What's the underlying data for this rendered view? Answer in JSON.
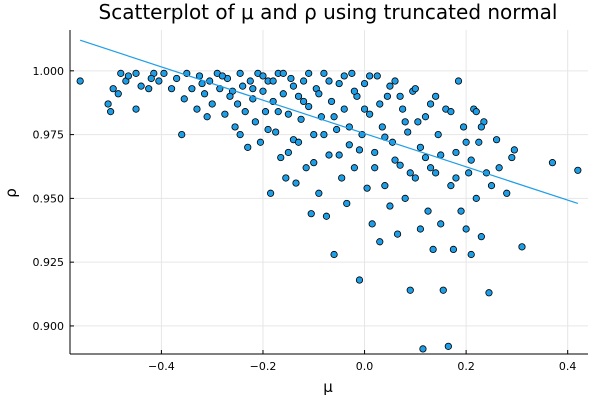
{
  "chart_data": {
    "type": "scatter",
    "title": "Scatterplot of μ and ρ using truncated normal",
    "xlabel": "μ",
    "ylabel": "ρ",
    "xlim": [
      -0.58,
      0.44
    ],
    "ylim": [
      0.889,
      1.016
    ],
    "xticks": [
      -0.4,
      -0.2,
      0.0,
      0.2,
      0.4
    ],
    "xtick_labels": [
      "−0.4",
      "−0.2",
      "0.0",
      "0.2",
      "0.4"
    ],
    "yticks": [
      0.9,
      0.925,
      0.95,
      0.975,
      1.0
    ],
    "ytick_labels": [
      "0.900",
      "0.925",
      "0.950",
      "0.975",
      "1.000"
    ],
    "grid": true,
    "legend": "none",
    "point_color": "#1f9ee8",
    "point_stroke": "#000000",
    "line_color": "#1f9ee8",
    "fit_line": {
      "x": [
        -0.56,
        0.42
      ],
      "y": [
        1.012,
        0.948
      ]
    },
    "series": [
      {
        "points": [
          [
            -0.56,
            0.996
          ],
          [
            -0.505,
            0.987
          ],
          [
            -0.5,
            0.984
          ],
          [
            -0.485,
            0.991
          ],
          [
            -0.48,
            0.999
          ],
          [
            -0.47,
            0.996
          ],
          [
            -0.465,
            0.998
          ],
          [
            -0.45,
            0.999
          ],
          [
            -0.44,
            0.994
          ],
          [
            -0.425,
            0.993
          ],
          [
            -0.415,
            0.999
          ],
          [
            -0.405,
            0.996
          ],
          [
            -0.395,
            0.999
          ],
          [
            -0.38,
            0.993
          ],
          [
            -0.37,
            0.997
          ],
          [
            -0.36,
            0.975
          ],
          [
            -0.355,
            0.989
          ],
          [
            -0.35,
            0.999
          ],
          [
            -0.34,
            0.993
          ],
          [
            -0.33,
            0.985
          ],
          [
            -0.325,
            0.998
          ],
          [
            -0.315,
            0.991
          ],
          [
            -0.305,
            0.996
          ],
          [
            -0.3,
            0.987
          ],
          [
            -0.29,
            0.999
          ],
          [
            -0.285,
            0.993
          ],
          [
            -0.275,
            0.983
          ],
          [
            -0.27,
            0.997
          ],
          [
            -0.26,
            0.992
          ],
          [
            -0.255,
            0.978
          ],
          [
            -0.25,
            0.987
          ],
          [
            -0.245,
            0.999
          ],
          [
            -0.24,
            0.994
          ],
          [
            -0.235,
            0.984
          ],
          [
            -0.23,
            0.97
          ],
          [
            -0.225,
            0.996
          ],
          [
            -0.22,
            0.989
          ],
          [
            -0.215,
            0.98
          ],
          [
            -0.21,
            0.999
          ],
          [
            -0.205,
            0.972
          ],
          [
            -0.2,
            0.992
          ],
          [
            -0.195,
            0.984
          ],
          [
            -0.19,
            0.996
          ],
          [
            -0.185,
            0.952
          ],
          [
            -0.18,
            0.988
          ],
          [
            -0.175,
            0.976
          ],
          [
            -0.17,
            0.999
          ],
          [
            -0.165,
            0.966
          ],
          [
            -0.16,
            0.991
          ],
          [
            -0.155,
            0.958
          ],
          [
            -0.15,
            0.983
          ],
          [
            -0.145,
            0.997
          ],
          [
            -0.14,
            0.973
          ],
          [
            -0.135,
            0.956
          ],
          [
            -0.13,
            0.99
          ],
          [
            -0.125,
            0.981
          ],
          [
            -0.12,
            0.996
          ],
          [
            -0.115,
            0.962
          ],
          [
            -0.11,
            0.986
          ],
          [
            -0.105,
            0.944
          ],
          [
            -0.1,
            0.975
          ],
          [
            -0.095,
            0.993
          ],
          [
            -0.09,
            0.952
          ],
          [
            -0.085,
            0.982
          ],
          [
            -0.08,
            0.999
          ],
          [
            -0.075,
            0.943
          ],
          [
            -0.07,
            0.967
          ],
          [
            -0.065,
            0.988
          ],
          [
            -0.06,
            0.928
          ],
          [
            -0.055,
            0.977
          ],
          [
            -0.05,
            0.995
          ],
          [
            -0.045,
            0.958
          ],
          [
            -0.04,
            0.985
          ],
          [
            -0.035,
            0.948
          ],
          [
            -0.03,
            0.971
          ],
          [
            -0.025,
            0.999
          ],
          [
            -0.02,
            0.962
          ],
          [
            -0.015,
            0.99
          ],
          [
            -0.01,
            0.918
          ],
          [
            -0.005,
            0.975
          ],
          [
            0.0,
            0.995
          ],
          [
            0.005,
            0.954
          ],
          [
            0.01,
            0.983
          ],
          [
            0.015,
            0.94
          ],
          [
            0.02,
            0.968
          ],
          [
            0.025,
            0.998
          ],
          [
            0.03,
            0.933
          ],
          [
            0.035,
            0.978
          ],
          [
            0.04,
            0.955
          ],
          [
            0.045,
            0.99
          ],
          [
            0.05,
            0.947
          ],
          [
            0.055,
            0.972
          ],
          [
            0.06,
            0.996
          ],
          [
            0.065,
            0.936
          ],
          [
            0.07,
            0.963
          ],
          [
            0.075,
            0.985
          ],
          [
            0.08,
            0.95
          ],
          [
            0.085,
            0.976
          ],
          [
            0.09,
            0.914
          ],
          [
            0.095,
            0.992
          ],
          [
            0.1,
            0.958
          ],
          [
            0.105,
            0.98
          ],
          [
            0.11,
            0.938
          ],
          [
            0.115,
            0.891
          ],
          [
            0.12,
            0.966
          ],
          [
            0.125,
            0.945
          ],
          [
            0.13,
            0.987
          ],
          [
            0.135,
            0.93
          ],
          [
            0.14,
            0.96
          ],
          [
            0.145,
            0.975
          ],
          [
            0.15,
            0.94
          ],
          [
            0.155,
            0.914
          ],
          [
            0.16,
            0.985
          ],
          [
            0.165,
            0.892
          ],
          [
            0.17,
            0.955
          ],
          [
            0.175,
            0.93
          ],
          [
            0.18,
            0.968
          ],
          [
            0.185,
            0.996
          ],
          [
            0.19,
            0.945
          ],
          [
            0.195,
            0.978
          ],
          [
            0.2,
            0.938
          ],
          [
            0.205,
            0.96
          ],
          [
            0.21,
            0.928
          ],
          [
            0.215,
            0.985
          ],
          [
            0.22,
            0.95
          ],
          [
            0.225,
            0.972
          ],
          [
            0.23,
            0.935
          ],
          [
            0.235,
            0.98
          ],
          [
            0.24,
            0.96
          ],
          [
            0.245,
            0.913
          ],
          [
            0.25,
            0.955
          ],
          [
            0.26,
            0.973
          ],
          [
            0.265,
            0.962
          ],
          [
            0.28,
            0.952
          ],
          [
            0.29,
            0.966
          ],
          [
            0.295,
            0.969
          ],
          [
            0.31,
            0.931
          ],
          [
            0.37,
            0.964
          ],
          [
            0.42,
            0.961
          ],
          [
            -0.495,
            0.993
          ],
          [
            -0.45,
            0.985
          ],
          [
            -0.42,
            0.997
          ],
          [
            -0.32,
            0.995
          ],
          [
            -0.31,
            0.982
          ],
          [
            -0.28,
            0.998
          ],
          [
            -0.265,
            0.99
          ],
          [
            -0.245,
            0.975
          ],
          [
            -0.22,
            0.993
          ],
          [
            -0.2,
            0.998
          ],
          [
            -0.19,
            0.977
          ],
          [
            -0.18,
            0.996
          ],
          [
            -0.17,
            0.984
          ],
          [
            -0.16,
            0.999
          ],
          [
            -0.15,
            0.968
          ],
          [
            -0.14,
            0.994
          ],
          [
            -0.13,
            0.972
          ],
          [
            -0.12,
            0.988
          ],
          [
            -0.11,
            0.999
          ],
          [
            -0.1,
            0.964
          ],
          [
            -0.09,
            0.991
          ],
          [
            -0.08,
            0.975
          ],
          [
            -0.07,
            0.996
          ],
          [
            -0.06,
            0.982
          ],
          [
            -0.05,
            0.967
          ],
          [
            -0.04,
            0.998
          ],
          [
            -0.03,
            0.978
          ],
          [
            -0.02,
            0.992
          ],
          [
            -0.01,
            0.969
          ],
          [
            0.0,
            0.985
          ],
          [
            0.01,
            0.998
          ],
          [
            0.02,
            0.962
          ],
          [
            0.03,
            0.987
          ],
          [
            0.04,
            0.974
          ],
          [
            0.05,
            0.994
          ],
          [
            0.06,
            0.965
          ],
          [
            0.07,
            0.99
          ],
          [
            0.08,
            0.98
          ],
          [
            0.09,
            0.96
          ],
          [
            0.1,
            0.993
          ],
          [
            0.11,
            0.97
          ],
          [
            0.12,
            0.982
          ],
          [
            0.13,
            0.962
          ],
          [
            0.14,
            0.99
          ],
          [
            0.15,
            0.967
          ],
          [
            0.17,
            0.984
          ],
          [
            0.18,
            0.958
          ],
          [
            0.2,
            0.972
          ],
          [
            0.21,
            0.965
          ],
          [
            0.22,
            0.984
          ],
          [
            0.23,
            0.978
          ]
        ]
      }
    ]
  }
}
